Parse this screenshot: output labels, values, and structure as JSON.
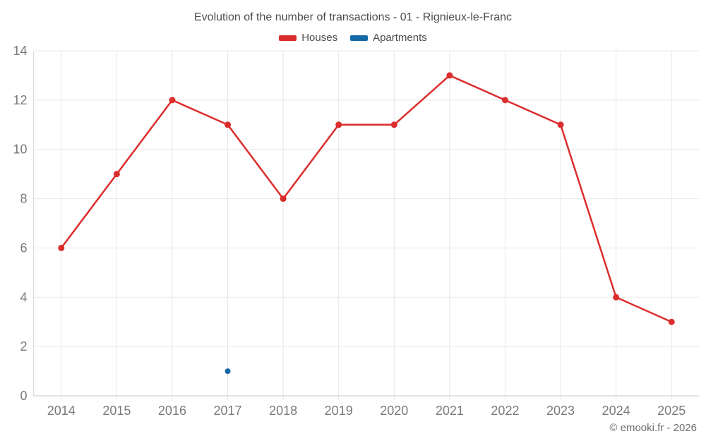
{
  "title": "Evolution of the number of transactions - 01 - Rignieux-le-Franc",
  "footer": "© emooki.fr - 2026",
  "chart_data": {
    "type": "line",
    "title": "Evolution of the number of transactions - 01 - Rignieux-le-Franc",
    "categories": [
      "2014",
      "2015",
      "2016",
      "2017",
      "2018",
      "2019",
      "2020",
      "2021",
      "2022",
      "2023",
      "2024",
      "2025"
    ],
    "series": [
      {
        "name": "Houses",
        "color": "#dc2d2d",
        "values": [
          6,
          9,
          12,
          11,
          8,
          11,
          11,
          13,
          12,
          11,
          4,
          3
        ]
      },
      {
        "name": "Apartments",
        "color": "#1569a6",
        "values": [
          null,
          null,
          null,
          1,
          null,
          null,
          null,
          null,
          null,
          null,
          null,
          null
        ]
      }
    ],
    "xlabel": "",
    "ylabel": "",
    "ylim": [
      0,
      14
    ],
    "yticks": [
      0,
      2,
      4,
      6,
      8,
      10,
      12,
      14
    ],
    "grid": true,
    "legend_position": "top"
  },
  "theme": {
    "background": "#ffffff",
    "grid_color": "#e8e8e8",
    "bottom_axis_color": "#c9c9c9",
    "left_axis_color": "#dcdcdc",
    "tick_label_color": "#7a7a7a",
    "title_color": "#4c4c4c",
    "legend_text_color": "#4c4c4c",
    "footer_color": "#6e6e6e"
  }
}
